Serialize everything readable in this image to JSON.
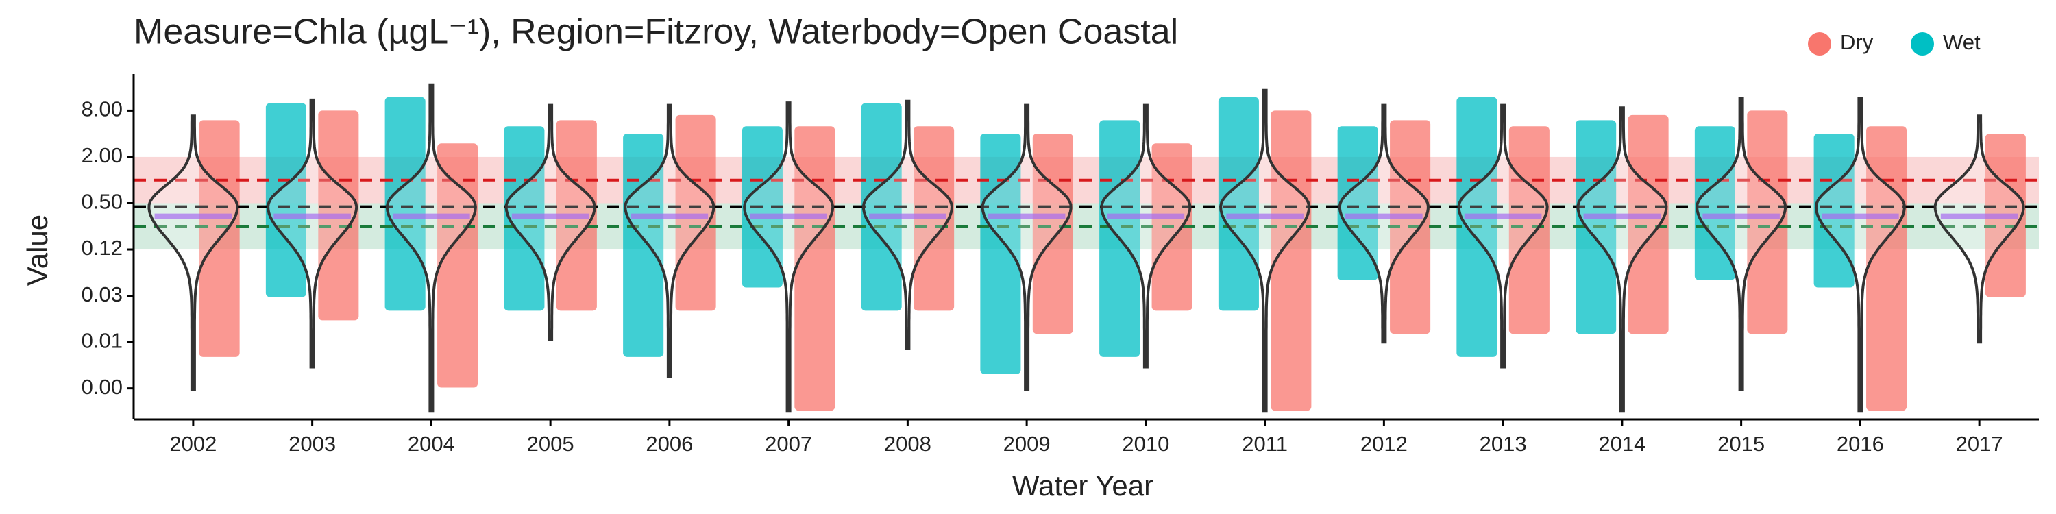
{
  "chart_data": {
    "type": "violin",
    "title": "Measure=Chla (µgL⁻¹), Region=Fitzroy, Waterbody=Open Coastal",
    "x_label": "Water Year",
    "y_label": "Value",
    "log_scale": true,
    "legend_position": "top-right",
    "categories": [
      "2002",
      "2003",
      "2004",
      "2005",
      "2006",
      "2007",
      "2008",
      "2009",
      "2010",
      "2011",
      "2012",
      "2013",
      "2014",
      "2015",
      "2016",
      "2017"
    ],
    "ylim": [
      0.00077,
      19.5
    ],
    "yticks": [
      {
        "value": 0.001953125,
        "label": "0.00"
      },
      {
        "value": 0.0078125,
        "label": "0.01"
      },
      {
        "value": 0.03125,
        "label": "0.03"
      },
      {
        "value": 0.125,
        "label": "0.12"
      },
      {
        "value": 0.5,
        "label": "0.50"
      },
      {
        "value": 2,
        "label": "2.00"
      },
      {
        "value": 8,
        "label": "8.00"
      }
    ],
    "violin": {
      "color": "#333333",
      "max": [
        6.8,
        11,
        17.3,
        9.4,
        9.4,
        10.1,
        10.6,
        9.4,
        9.4,
        14.7,
        9.4,
        9.4,
        8.7,
        11.5,
        11.5,
        6.8
      ],
      "min": [
        0.0019,
        0.0037,
        0.001,
        0.0085,
        0.0028,
        0.001,
        0.0064,
        0.0019,
        0.0037,
        0.001,
        0.0078,
        0.0037,
        0.001,
        0.0019,
        0.001,
        0.0078
      ],
      "peak": [
        0.45,
        0.45,
        0.45,
        0.45,
        0.45,
        0.45,
        0.45,
        0.45,
        0.45,
        0.45,
        0.45,
        0.45,
        0.45,
        0.45,
        0.45,
        0.45
      ]
    },
    "series": [
      {
        "name": "Dry",
        "color": "#f8766d",
        "high": [
          6,
          8,
          3,
          6,
          7,
          5,
          5,
          4,
          3,
          8,
          6,
          5,
          7,
          8,
          5,
          4
        ],
        "low": [
          0.005,
          0.015,
          0.002,
          0.02,
          0.02,
          0.001,
          0.02,
          0.01,
          0.02,
          0.001,
          0.01,
          0.01,
          0.01,
          0.01,
          0.001,
          0.03
        ]
      },
      {
        "name": "Wet",
        "color": "#00bfc4",
        "high": [
          null,
          10,
          12,
          5,
          4,
          5,
          10,
          4,
          6,
          12,
          5,
          12,
          6,
          5,
          4,
          null
        ],
        "low": [
          null,
          0.03,
          0.02,
          0.02,
          0.005,
          0.04,
          0.02,
          0.003,
          0.005,
          0.02,
          0.05,
          0.005,
          0.01,
          0.05,
          0.04,
          null
        ]
      }
    ],
    "reference_bands": [
      {
        "low": 0.5,
        "high": 2.0,
        "color": "#f4a6a6"
      },
      {
        "low": 0.125,
        "high": 0.5,
        "color": "#9fd3b8"
      }
    ],
    "reference_lines": [
      {
        "value": 1.0,
        "color": "#d7191c"
      },
      {
        "value": 0.45,
        "color": "#000000"
      },
      {
        "value": 0.25,
        "color": "#1a7a3a"
      }
    ]
  }
}
